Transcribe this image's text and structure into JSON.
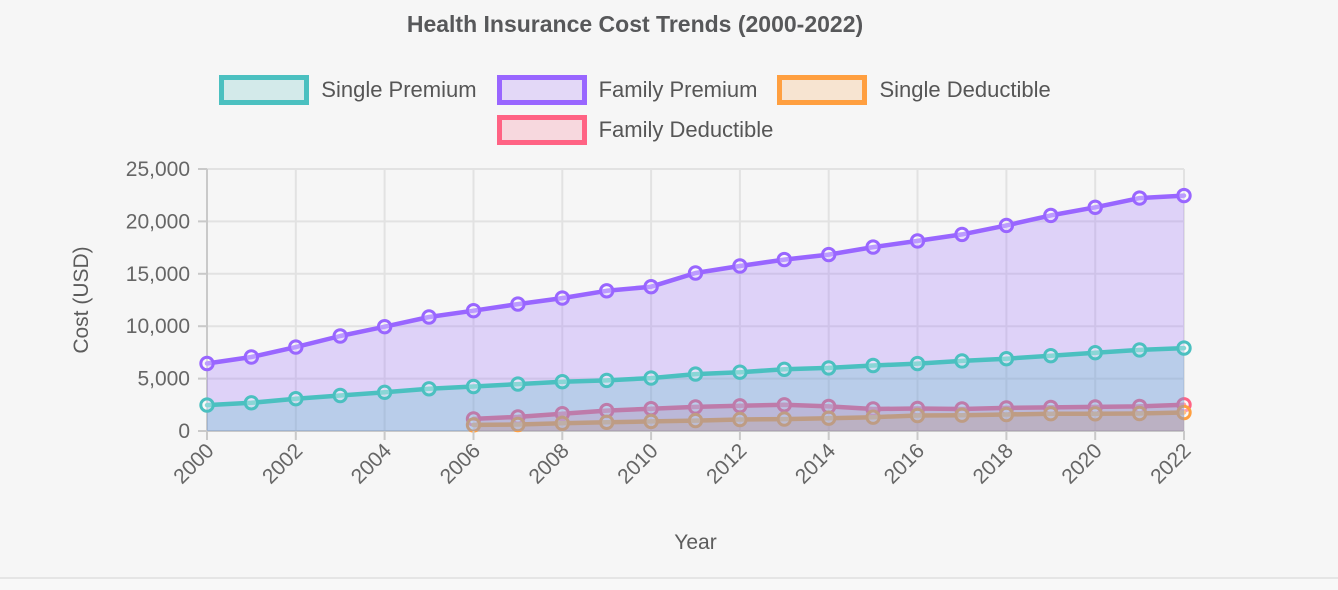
{
  "page": {
    "background": "#f6f6f6",
    "bottom_divider_color": "#e5e5e5"
  },
  "header": {
    "title": "Health Insurance Cost Trends (2000-2022)"
  },
  "legend": {
    "items": [
      {
        "label": "Single Premium",
        "color": "#4BC0C0"
      },
      {
        "label": "Family Premium",
        "color": "#9966FF"
      },
      {
        "label": "Single Deductible",
        "color": "#FF9F40"
      },
      {
        "label": "Family Deductible",
        "color": "#FF6384"
      }
    ]
  },
  "axes": {
    "x_title": "Year",
    "y_title": "Cost (USD)",
    "y_ticks": [
      {
        "label": "0",
        "value": 0
      },
      {
        "label": "5,000",
        "value": 5000
      },
      {
        "label": "10,000",
        "value": 10000
      },
      {
        "label": "15,000",
        "value": 15000
      },
      {
        "label": "20,000",
        "value": 20000
      },
      {
        "label": "25,000",
        "value": 25000
      }
    ],
    "x_ticks": [
      2000,
      2002,
      2004,
      2006,
      2008,
      2010,
      2012,
      2014,
      2016,
      2018,
      2020,
      2022
    ]
  },
  "chart_data": {
    "type": "area",
    "title": "Health Insurance Cost Trends (2000-2022)",
    "xlabel": "Year",
    "ylabel": "Cost (USD)",
    "ylim": [
      0,
      25000
    ],
    "xlim": [
      2000,
      2022
    ],
    "grid": true,
    "legend_position": "top",
    "x": [
      2000,
      2001,
      2002,
      2003,
      2004,
      2005,
      2006,
      2007,
      2008,
      2009,
      2010,
      2011,
      2012,
      2013,
      2014,
      2015,
      2016,
      2017,
      2018,
      2019,
      2020,
      2021,
      2022
    ],
    "series": [
      {
        "name": "Single Premium",
        "color": "#4BC0C0",
        "fill_opacity": 0.25,
        "values": [
          2471,
          2689,
          3083,
          3383,
          3695,
          4024,
          4242,
          4479,
          4704,
          4824,
          5049,
          5429,
          5615,
          5884,
          6025,
          6251,
          6435,
          6690,
          6896,
          7188,
          7470,
          7739,
          7911
        ]
      },
      {
        "name": "Family Premium",
        "color": "#9966FF",
        "fill_opacity": 0.25,
        "values": [
          6438,
          7061,
          8003,
          9068,
          9950,
          10880,
          11480,
          12106,
          12680,
          13375,
          13770,
          15073,
          15745,
          16351,
          16834,
          17545,
          18142,
          18764,
          19616,
          20576,
          21342,
          22221,
          22463
        ]
      },
      {
        "name": "Single Deductible",
        "color": "#FF9F40",
        "fill_opacity": 0.25,
        "values": [
          null,
          null,
          null,
          null,
          null,
          null,
          584,
          616,
          735,
          826,
          917,
          991,
          1097,
          1135,
          1217,
          1318,
          1478,
          1505,
          1573,
          1655,
          1644,
          1669,
          1763
        ]
      },
      {
        "name": "Family Deductible",
        "color": "#FF6384",
        "fill_opacity": 0.25,
        "values": [
          null,
          null,
          null,
          null,
          null,
          null,
          1150,
          1350,
          1650,
          1950,
          2125,
          2300,
          2400,
          2500,
          2350,
          2100,
          2150,
          2100,
          2200,
          2250,
          2300,
          2350,
          2500
        ]
      }
    ]
  }
}
